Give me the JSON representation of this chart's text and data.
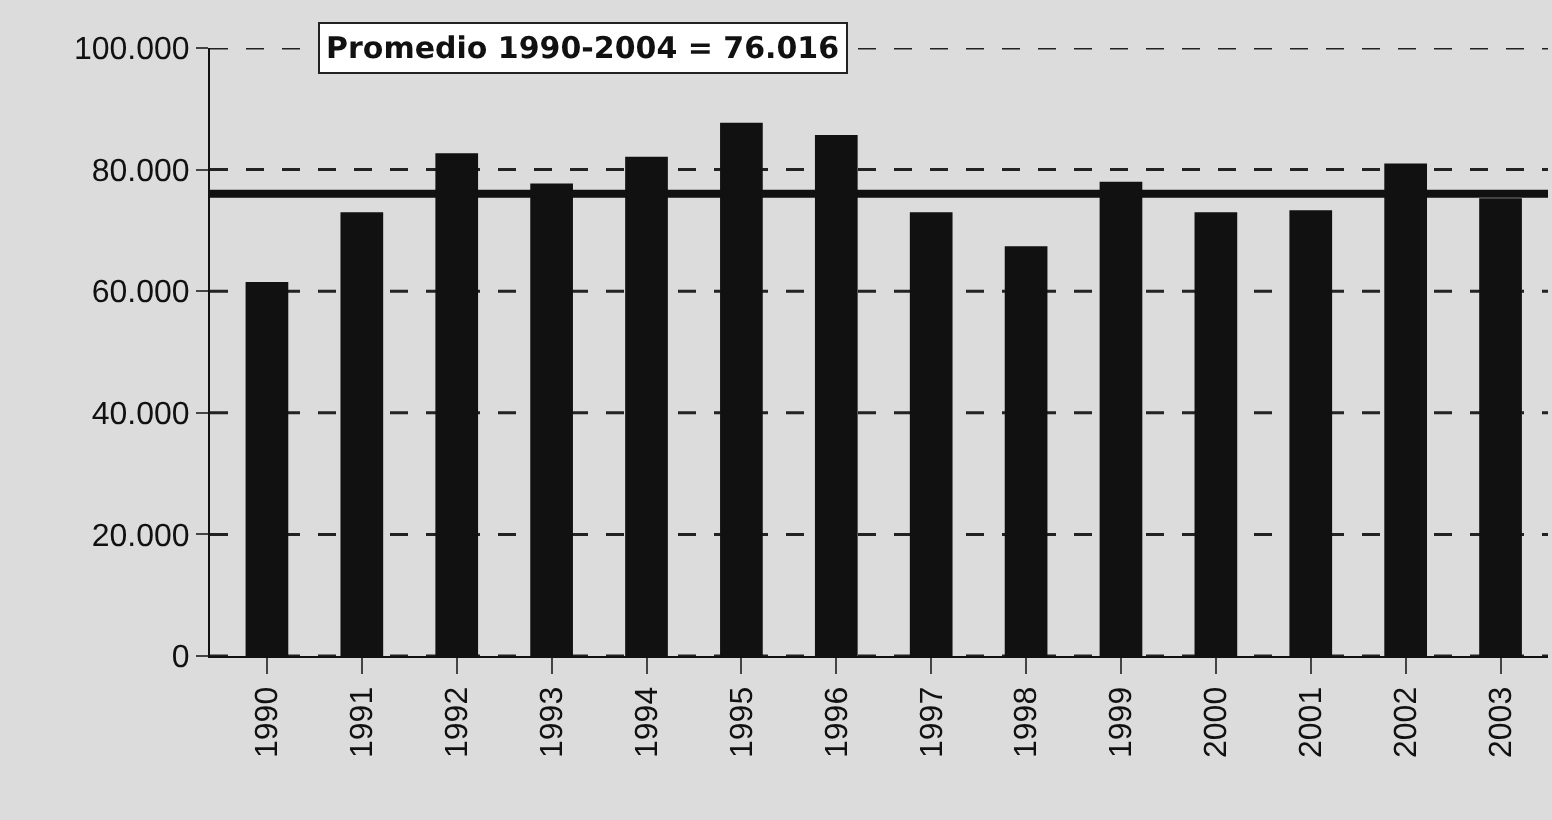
{
  "chart_data": {
    "type": "bar",
    "categories": [
      "1990",
      "1991",
      "1992",
      "1993",
      "1994",
      "1995",
      "1996",
      "1997",
      "1998",
      "1999",
      "2000",
      "2001",
      "2002",
      "2003"
    ],
    "values": [
      61500,
      73000,
      82700,
      77700,
      82100,
      87700,
      85700,
      73000,
      67400,
      78000,
      73000,
      73300,
      81000,
      75300
    ],
    "color": "#111111",
    "ylim": [
      0,
      100000
    ],
    "yticks": [
      {
        "value": 0,
        "label": "0"
      },
      {
        "value": 20000,
        "label": "20.000"
      },
      {
        "value": 40000,
        "label": "40.000"
      },
      {
        "value": 60000,
        "label": "60.000"
      },
      {
        "value": 80000,
        "label": "80.000"
      },
      {
        "value": 100000,
        "label": "100.000"
      }
    ],
    "grid": "y",
    "ref_lines": [
      {
        "axis": "y",
        "value": 76016,
        "label": "Promedio 1990-2004 = 76.016",
        "color": "#111111",
        "line_style": "solid"
      }
    ]
  }
}
